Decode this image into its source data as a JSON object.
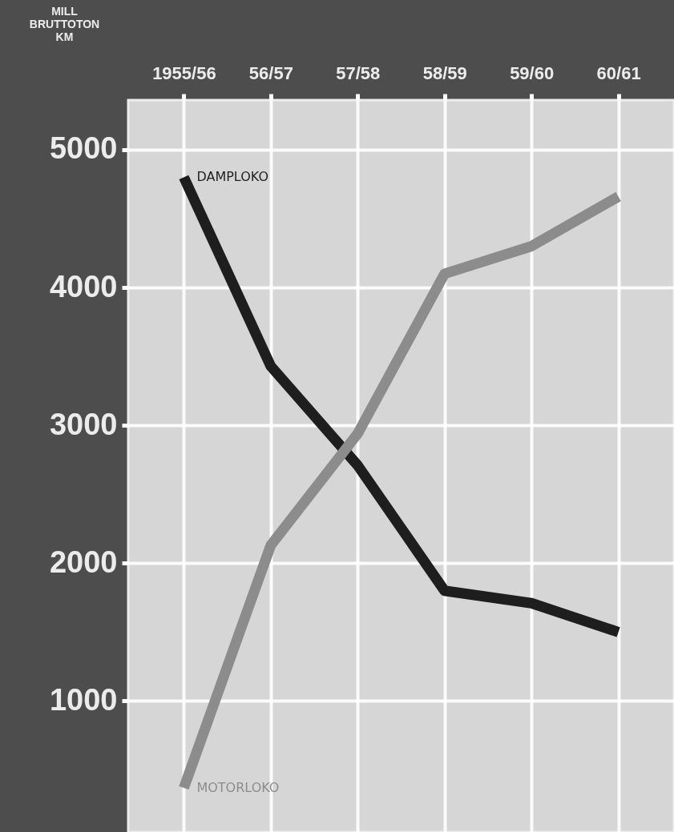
{
  "chart_data": {
    "type": "line",
    "ylabel": "MILL BRUTTOTON KM",
    "categories": [
      "1955/56",
      "56/57",
      "57/58",
      "58/59",
      "59/60",
      "60/61"
    ],
    "series": [
      {
        "name": "DAMPLOKO",
        "color": "#1e1e1e",
        "values": [
          4800,
          3430,
          2710,
          1800,
          1710,
          1500
        ]
      },
      {
        "name": "MOTORLOKO",
        "color": "#8c8c8c",
        "values": [
          370,
          2130,
          2940,
          4100,
          4300,
          4660
        ]
      }
    ],
    "ylim": [
      50,
      5360
    ],
    "yticks": [
      1000,
      2000,
      3000,
      4000,
      5000
    ],
    "grid": true,
    "line_style": "solid",
    "marker": "none"
  }
}
